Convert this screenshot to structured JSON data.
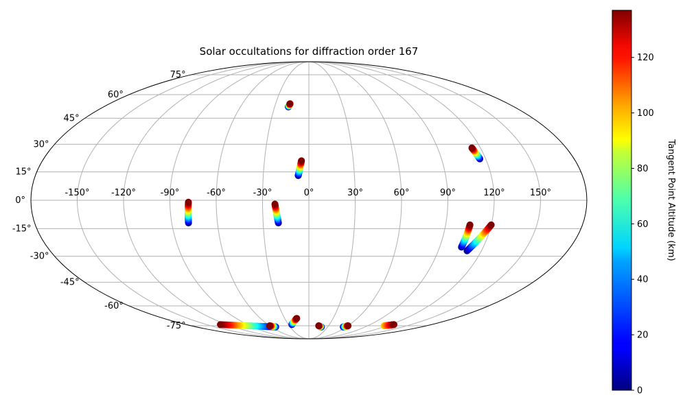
{
  "chart_data": {
    "type": "scatter",
    "projection": "mollweide",
    "title": "Solar occultations for diffraction order 167",
    "xlabel": "",
    "ylabel": "",
    "grid": true,
    "colormap": "jet",
    "longitude_ticks": [
      "-150°",
      "-120°",
      "-90°",
      "-60°",
      "-30°",
      "0°",
      "30°",
      "60°",
      "90°",
      "120°",
      "150°"
    ],
    "latitude_ticks": [
      "75°",
      "60°",
      "45°",
      "30°",
      "15°",
      "0°",
      "-15°",
      "-30°",
      "-45°",
      "-60°",
      "-75°"
    ],
    "colorbar": {
      "label": "Tangent Point Altitude (km)",
      "range": [
        0,
        137
      ],
      "ticks": [
        "0",
        "20",
        "40",
        "60",
        "80",
        "100",
        "120"
      ]
    },
    "tracks": [
      {
        "lon_start": -79,
        "lat_start": -12,
        "lon_end": -78,
        "lat_end": -1,
        "alt_start": 0,
        "alt_end": 137
      },
      {
        "lon_start": -20,
        "lat_start": -12,
        "lon_end": -22,
        "lat_end": -2,
        "alt_start": 0,
        "alt_end": 137
      },
      {
        "lon_start": -7,
        "lat_start": 13,
        "lon_end": -5,
        "lat_end": 21,
        "alt_start": 0,
        "alt_end": 137
      },
      {
        "lon_start": -18,
        "lat_start": 52,
        "lon_end": -17,
        "lat_end": 54,
        "alt_start": 0,
        "alt_end": 137
      },
      {
        "lon_start": 116,
        "lat_start": 22,
        "lon_end": 114,
        "lat_end": 28,
        "alt_start": 0,
        "alt_end": 137
      },
      {
        "lon_start": 105,
        "lat_start": -25,
        "lon_end": 106,
        "lat_end": -13,
        "alt_start": 0,
        "alt_end": 137
      },
      {
        "lon_start": 110,
        "lat_start": -27,
        "lon_end": 120,
        "lat_end": -13,
        "alt_start": 0,
        "alt_end": 137
      },
      {
        "lon_start": -25,
        "lat_start": -74,
        "lon_end": -15,
        "lat_end": -69,
        "alt_start": 0,
        "alt_end": 137
      },
      {
        "lon_start": -55,
        "lat_start": -76,
        "lon_end": -130,
        "lat_end": -74,
        "alt_start": 0,
        "alt_end": 137
      },
      {
        "lon_start": -53,
        "lat_start": -76,
        "lon_end": -60,
        "lat_end": -75,
        "alt_start": 0,
        "alt_end": 137
      },
      {
        "lon_start": 20,
        "lat_start": -76,
        "lon_end": 15,
        "lat_end": -75,
        "alt_start": 0,
        "alt_end": 137
      },
      {
        "lon_start": 55,
        "lat_start": -76,
        "lon_end": 60,
        "lat_end": -75,
        "alt_start": 0,
        "alt_end": 137
      },
      {
        "lon_start": 115,
        "lat_start": -75,
        "lon_end": 125,
        "lat_end": -74,
        "alt_start": 90,
        "alt_end": 137
      }
    ]
  }
}
